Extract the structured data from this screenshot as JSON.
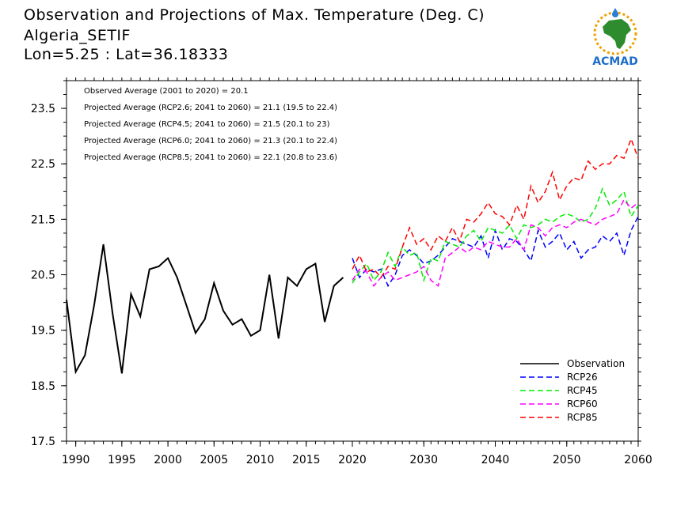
{
  "header": {
    "title": "Observation and Projections of Max. Temperature (Deg. C)",
    "location": "Algeria_SETIF",
    "coords": "Lon=5.25 : Lat=36.18333"
  },
  "logo": {
    "text": "ACMAD",
    "icon": "africa-map-logo"
  },
  "chart_data": {
    "type": "line",
    "title": "Observation and Projections of Max. Temperature (Deg. C)",
    "xlabel": "",
    "ylabel": "",
    "xlim": [
      1989,
      2060
    ],
    "ylim": [
      17.5,
      24.0
    ],
    "x_ticks": [
      "1990",
      "1995",
      "2000",
      "2005",
      "2010",
      "2015",
      "2020",
      "2030",
      "2040",
      "2050",
      "2060"
    ],
    "y_ticks": [
      "17.5",
      "18.5",
      "19.5",
      "20.5",
      "21.5",
      "22.5",
      "23.5"
    ],
    "grid": false,
    "legend_position": "bottom-right",
    "annotations": [
      "Observed Average (2001 to 2020) = 20.1",
      "Projected Average (RCP2.6; 2041 to 2060) = 21.1 (19.5 to 22.4)",
      "Projected Average (RCP4.5; 2041 to 2060) = 21.5 (20.1 to 23)",
      "Projected Average (RCP6.0; 2041 to 2060) = 21.3 (20.1 to 22.4)",
      "Projected Average (RCP8.5; 2041 to 2060) = 22.1 (20.8 to 23.6)"
    ],
    "series": [
      {
        "name": "Observation",
        "color": "#000000",
        "dashed": false,
        "x": [
          1989,
          1990,
          1991,
          1992,
          1993,
          1994,
          1995,
          1996,
          1997,
          1998,
          1999,
          2000,
          2001,
          2002,
          2003,
          2004,
          2005,
          2006,
          2007,
          2008,
          2009,
          2010,
          2011,
          2012,
          2013,
          2014,
          2015,
          2016,
          2017,
          2018,
          2019
        ],
        "y": [
          20.05,
          18.75,
          19.05,
          19.95,
          21.05,
          19.8,
          18.72,
          20.15,
          19.75,
          20.6,
          20.65,
          20.8,
          20.45,
          19.95,
          19.45,
          19.7,
          20.35,
          19.85,
          19.6,
          19.7,
          19.4,
          19.5,
          20.5,
          19.35,
          20.45,
          20.3,
          20.6,
          20.7,
          19.65,
          20.3,
          20.45
        ]
      },
      {
        "name": "RCP26",
        "color": "#0000ff",
        "dashed": true,
        "x": [
          2020,
          2021,
          2022,
          2023,
          2024,
          2025,
          2026,
          2027,
          2028,
          2029,
          2030,
          2031,
          2032,
          2033,
          2034,
          2035,
          2036,
          2037,
          2038,
          2039,
          2040,
          2041,
          2042,
          2043,
          2044,
          2045,
          2046,
          2047,
          2048,
          2049,
          2050,
          2051,
          2052,
          2053,
          2054,
          2055,
          2056,
          2057,
          2058,
          2059,
          2060
        ],
        "y": [
          20.8,
          20.45,
          20.6,
          20.55,
          20.6,
          20.3,
          20.5,
          20.85,
          20.95,
          20.85,
          20.7,
          20.75,
          20.85,
          21.0,
          21.15,
          21.1,
          21.05,
          21.0,
          21.2,
          20.8,
          21.3,
          20.95,
          21.15,
          21.1,
          20.95,
          20.75,
          21.3,
          21.0,
          21.1,
          21.25,
          20.95,
          21.1,
          20.8,
          20.95,
          21.0,
          21.2,
          21.1,
          21.25,
          20.85,
          21.3,
          21.55
        ]
      },
      {
        "name": "RCP45",
        "color": "#00ee00",
        "dashed": true,
        "x": [
          2020,
          2021,
          2022,
          2023,
          2024,
          2025,
          2026,
          2027,
          2028,
          2029,
          2030,
          2031,
          2032,
          2033,
          2034,
          2035,
          2036,
          2037,
          2038,
          2039,
          2040,
          2041,
          2042,
          2043,
          2044,
          2045,
          2046,
          2047,
          2048,
          2049,
          2050,
          2051,
          2052,
          2053,
          2054,
          2055,
          2056,
          2057,
          2058,
          2059,
          2060
        ],
        "y": [
          20.35,
          20.55,
          20.7,
          20.4,
          20.55,
          20.9,
          20.65,
          21.0,
          20.85,
          20.9,
          20.4,
          20.8,
          20.75,
          21.1,
          21.05,
          21.0,
          21.2,
          21.3,
          21.1,
          21.35,
          21.3,
          21.25,
          21.4,
          21.15,
          21.4,
          21.35,
          21.4,
          21.5,
          21.45,
          21.55,
          21.6,
          21.55,
          21.45,
          21.5,
          21.7,
          22.05,
          21.75,
          21.85,
          22.0,
          21.55,
          21.75
        ]
      },
      {
        "name": "RCP60",
        "color": "#ff00ff",
        "dashed": true,
        "x": [
          2020,
          2021,
          2022,
          2023,
          2024,
          2025,
          2026,
          2027,
          2028,
          2029,
          2030,
          2031,
          2032,
          2033,
          2034,
          2035,
          2036,
          2037,
          2038,
          2039,
          2040,
          2041,
          2042,
          2043,
          2044,
          2045,
          2046,
          2047,
          2048,
          2049,
          2050,
          2051,
          2052,
          2053,
          2054,
          2055,
          2056,
          2057,
          2058,
          2059,
          2060
        ],
        "y": [
          20.4,
          20.6,
          20.55,
          20.3,
          20.45,
          20.55,
          20.4,
          20.45,
          20.5,
          20.55,
          20.65,
          20.4,
          20.3,
          20.8,
          20.9,
          21.0,
          20.9,
          21.0,
          20.95,
          21.1,
          21.05,
          21.0,
          21.0,
          21.15,
          20.95,
          21.4,
          21.35,
          21.2,
          21.35,
          21.4,
          21.35,
          21.45,
          21.5,
          21.45,
          21.4,
          21.5,
          21.55,
          21.6,
          21.85,
          21.7,
          21.8
        ]
      },
      {
        "name": "RCP85",
        "color": "#ff0000",
        "dashed": true,
        "x": [
          2020,
          2021,
          2022,
          2023,
          2024,
          2025,
          2026,
          2027,
          2028,
          2029,
          2030,
          2031,
          2032,
          2033,
          2034,
          2035,
          2036,
          2037,
          2038,
          2039,
          2040,
          2041,
          2042,
          2043,
          2044,
          2045,
          2046,
          2047,
          2048,
          2049,
          2050,
          2051,
          2052,
          2053,
          2054,
          2055,
          2056,
          2057,
          2058,
          2059,
          2060
        ],
        "y": [
          20.6,
          20.85,
          20.55,
          20.6,
          20.45,
          20.65,
          20.6,
          21.0,
          21.35,
          21.05,
          21.15,
          20.95,
          21.2,
          21.1,
          21.35,
          21.1,
          21.5,
          21.45,
          21.6,
          21.8,
          21.6,
          21.55,
          21.4,
          21.75,
          21.5,
          22.1,
          21.8,
          22.0,
          22.35,
          21.85,
          22.1,
          22.25,
          22.2,
          22.55,
          22.4,
          22.5,
          22.5,
          22.65,
          22.6,
          22.95,
          22.6
        ]
      }
    ]
  }
}
